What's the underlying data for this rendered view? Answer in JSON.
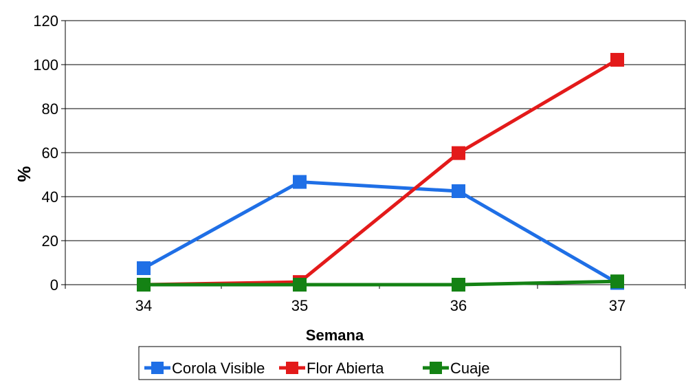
{
  "chart_data": {
    "type": "line",
    "xlabel": "Semana",
    "ylabel": "%",
    "ylim": [
      0,
      120
    ],
    "yticks": [
      0,
      20,
      40,
      60,
      80,
      100,
      120
    ],
    "categories": [
      "34",
      "35",
      "36",
      "37"
    ],
    "grid": "horizontal",
    "legend_position": "bottom",
    "series": [
      {
        "name": "Corola Visible",
        "color": "#1f6fe6",
        "marker": "square",
        "values": [
          7.5,
          46.7,
          42.5,
          0.8
        ]
      },
      {
        "name": "Flor Abierta",
        "color": "#e31a1a",
        "marker": "square",
        "values": [
          0,
          1.2,
          59.8,
          102.2
        ]
      },
      {
        "name": "Cuaje",
        "color": "#148214",
        "marker": "square",
        "values": [
          0,
          0,
          0,
          1.5
        ]
      }
    ]
  }
}
